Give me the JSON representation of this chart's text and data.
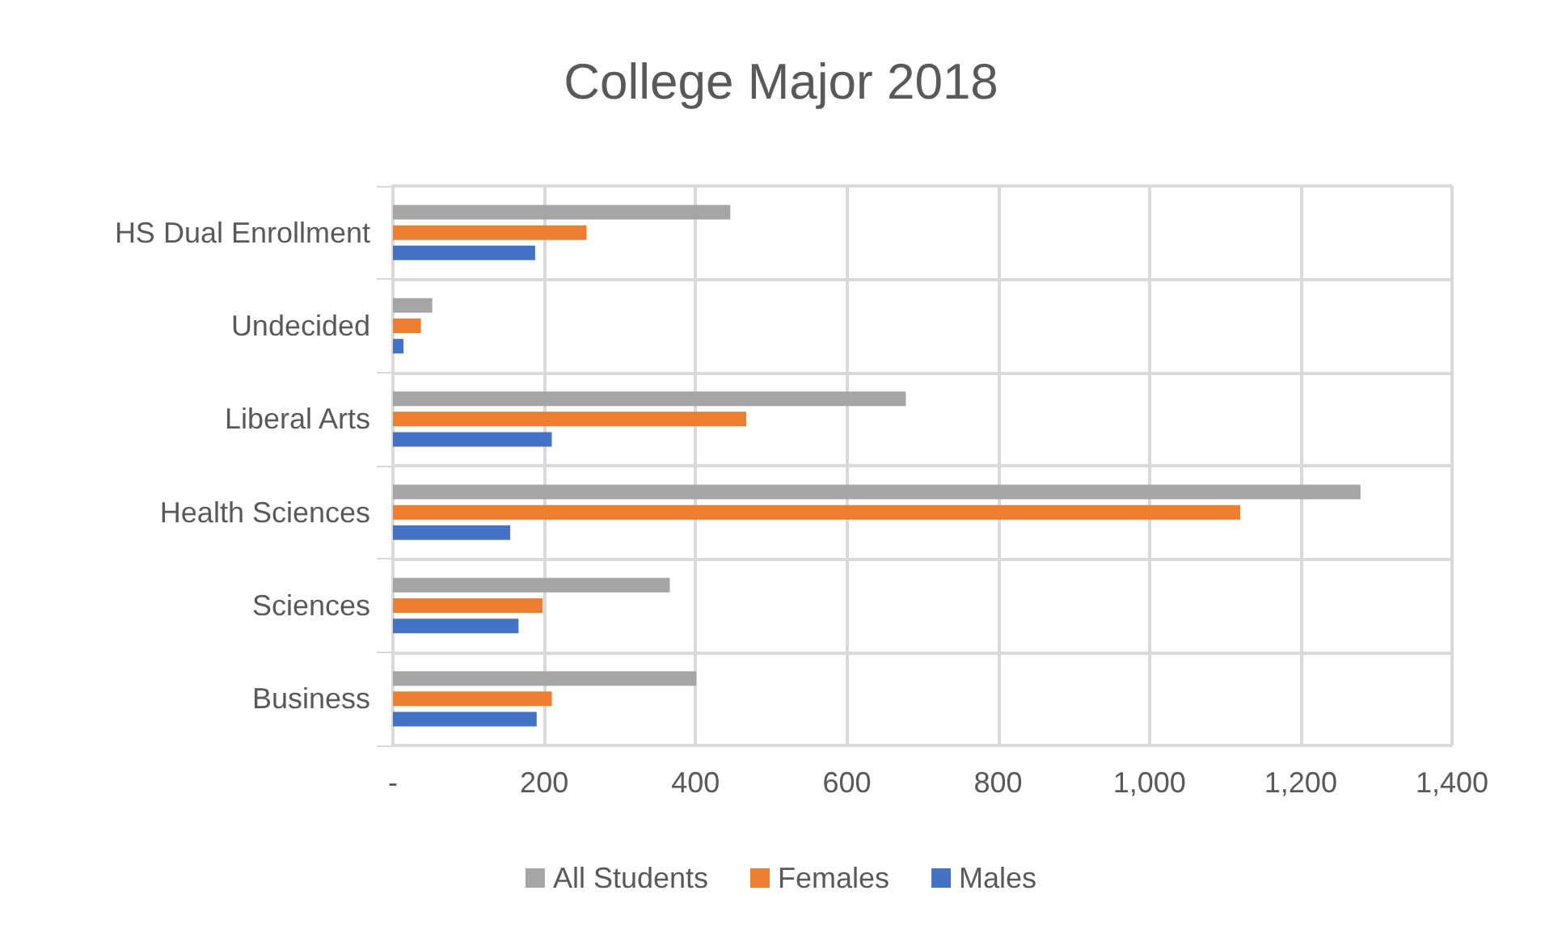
{
  "chart_data": {
    "type": "bar",
    "orientation": "horizontal",
    "title": "College Major 2018",
    "categories": [
      "HS Dual Enrollment",
      "Undecided",
      "Liberal Arts",
      "Health Sciences",
      "Sciences",
      "Business"
    ],
    "series": [
      {
        "name": "All Students",
        "color": "#a5a5a5",
        "values": [
          446,
          52,
          678,
          1279,
          366,
          401
        ]
      },
      {
        "name": "Females",
        "color": "#ed7d31",
        "values": [
          256,
          37,
          467,
          1120,
          198,
          210
        ]
      },
      {
        "name": "Males",
        "color": "#4472c4",
        "values": [
          188,
          14,
          210,
          155,
          166,
          190
        ]
      }
    ],
    "xlim": [
      0,
      1400
    ],
    "xticks": [
      {
        "value": 0,
        "label": "-"
      },
      200,
      400,
      600,
      800,
      {
        "value": 1000,
        "label": "1,000"
      },
      {
        "value": 1200,
        "label": "1,200"
      },
      {
        "value": 1400,
        "label": "1,400"
      }
    ],
    "grid": true,
    "legend": "bottom"
  }
}
